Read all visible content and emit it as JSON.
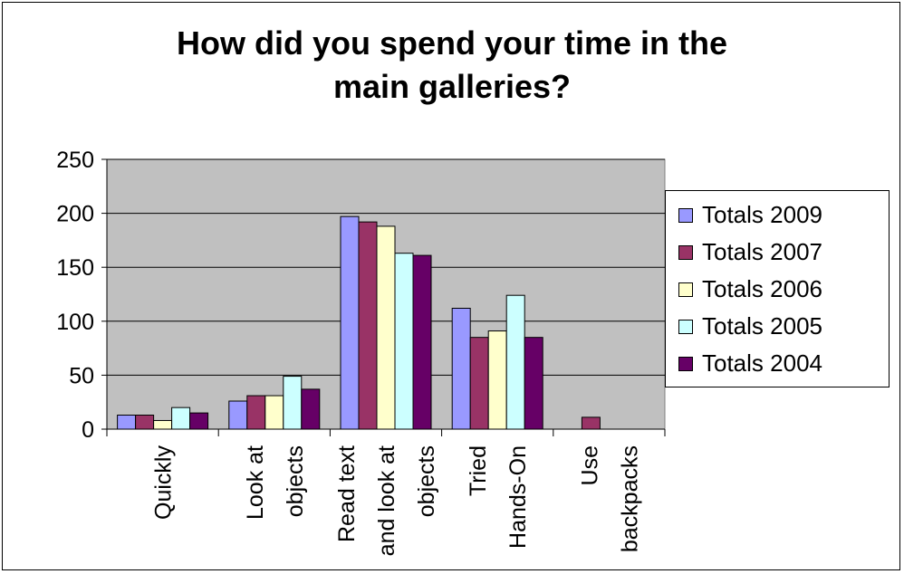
{
  "chart_data": {
    "type": "bar",
    "title_lines": [
      "How did you spend your time in the",
      "main galleries?"
    ],
    "categories": [
      [
        "Quickly"
      ],
      [
        "Look at",
        "objects"
      ],
      [
        "Read text",
        "and look at",
        "objects"
      ],
      [
        "Tried",
        "Hands-On"
      ],
      [
        "Use",
        "backpacks"
      ]
    ],
    "ylim": [
      0,
      250
    ],
    "yticks": [
      0,
      50,
      100,
      150,
      200,
      250
    ],
    "grid": true,
    "legend_position": "right",
    "plot_background": "#c0c0c0",
    "series": [
      {
        "name": "Totals 2009",
        "color": "#9999ff",
        "values": [
          13,
          26,
          197,
          112,
          0
        ]
      },
      {
        "name": "Totals 2007",
        "color": "#993366",
        "values": [
          13,
          31,
          192,
          85,
          11
        ]
      },
      {
        "name": "Totals 2006",
        "color": "#ffffcc",
        "values": [
          8,
          31,
          188,
          91,
          0
        ]
      },
      {
        "name": "Totals 2005",
        "color": "#ccffff",
        "values": [
          20,
          49,
          163,
          124,
          0
        ]
      },
      {
        "name": "Totals 2004",
        "color": "#660066",
        "values": [
          15,
          37,
          161,
          85,
          0
        ]
      }
    ]
  }
}
